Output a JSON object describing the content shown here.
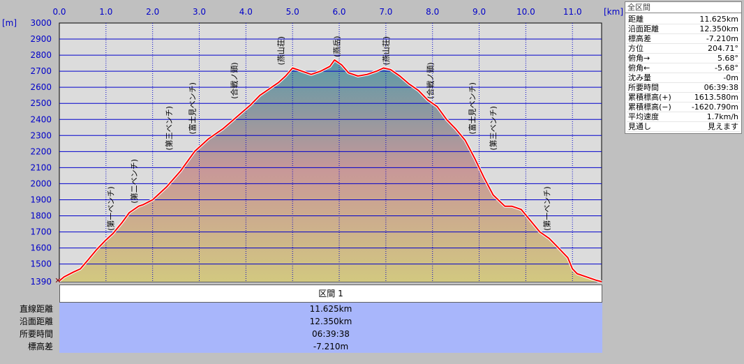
{
  "chart_data": {
    "type": "area",
    "x_unit_label": "[km]",
    "y_unit_label": "[m]",
    "xlim": [
      0,
      11.625
    ],
    "ylim": [
      1390,
      3000
    ],
    "x_ticks": [
      "0.0",
      "1.0",
      "2.0",
      "3.0",
      "4.0",
      "5.0",
      "6.0",
      "7.0",
      "8.0",
      "9.0",
      "10.0",
      "11.0"
    ],
    "y_ticks": [
      "1390",
      "1500",
      "1600",
      "1700",
      "1800",
      "1900",
      "2000",
      "2100",
      "2200",
      "2300",
      "2400",
      "2500",
      "2600",
      "2700",
      "2800",
      "2900",
      "3000"
    ],
    "grid": true,
    "profile": {
      "x": [
        0.0,
        0.1,
        0.3,
        0.45,
        0.6,
        0.8,
        1.0,
        1.15,
        1.35,
        1.5,
        1.7,
        1.8,
        2.0,
        2.3,
        2.6,
        2.9,
        3.2,
        3.5,
        3.7,
        3.9,
        4.1,
        4.3,
        4.5,
        4.7,
        4.85,
        5.0,
        5.2,
        5.4,
        5.6,
        5.8,
        5.9,
        6.05,
        6.2,
        6.4,
        6.6,
        6.8,
        6.95,
        7.1,
        7.3,
        7.5,
        7.7,
        7.9,
        8.1,
        8.3,
        8.5,
        8.7,
        8.9,
        9.1,
        9.3,
        9.55,
        9.7,
        9.9,
        10.1,
        10.3,
        10.5,
        10.7,
        10.9,
        11.0,
        11.1,
        11.3,
        11.5,
        11.625
      ],
      "y": [
        1395,
        1420,
        1450,
        1470,
        1520,
        1590,
        1650,
        1690,
        1760,
        1820,
        1860,
        1870,
        1900,
        1980,
        2080,
        2200,
        2280,
        2340,
        2390,
        2440,
        2490,
        2550,
        2590,
        2630,
        2670,
        2720,
        2700,
        2680,
        2700,
        2730,
        2770,
        2740,
        2690,
        2670,
        2680,
        2700,
        2720,
        2710,
        2670,
        2620,
        2580,
        2520,
        2480,
        2400,
        2340,
        2270,
        2160,
        2040,
        1930,
        1860,
        1860,
        1840,
        1770,
        1700,
        1660,
        1600,
        1540,
        1470,
        1440,
        1420,
        1400,
        1390
      ]
    },
    "waypoints": [
      {
        "x": 1.1,
        "y": 1690,
        "label": "(第一ベンチ)"
      },
      {
        "x": 1.6,
        "y": 1860,
        "label": "(第二ベンチ)"
      },
      {
        "x": 2.35,
        "y": 2190,
        "label": "(第三ベンチ)"
      },
      {
        "x": 2.85,
        "y": 2290,
        "label": "(富士見ベンチ)"
      },
      {
        "x": 3.75,
        "y": 2510,
        "label": "(合戦ノ頭)"
      },
      {
        "x": 4.75,
        "y": 2720,
        "label": "(燕山荘)"
      },
      {
        "x": 5.95,
        "y": 2770,
        "label": "(燕岳)"
      },
      {
        "x": 7.0,
        "y": 2720,
        "label": "(燕山荘)"
      },
      {
        "x": 7.95,
        "y": 2510,
        "label": "(合戦ノ頭)"
      },
      {
        "x": 8.85,
        "y": 2290,
        "label": "(富士見ベンチ)"
      },
      {
        "x": 9.3,
        "y": 2190,
        "label": "(第三ベンチ)"
      },
      {
        "x": 10.45,
        "y": 1690,
        "label": "(第一ベンチ)"
      }
    ],
    "colors": {
      "background": "#c0c0c0",
      "plot_area": "#dcdcdc",
      "grid": "#0000cc",
      "profile_line": "#ff0000",
      "fill_top": "#5a9aa8",
      "fill_mid": "#c89898",
      "fill_bottom": "#d2c880"
    }
  },
  "summary": {
    "title": "全区間",
    "rows": [
      {
        "label": "距離",
        "value": "11.625km"
      },
      {
        "label": "沿面距離",
        "value": "12.350km"
      },
      {
        "label": "標高差",
        "value": "-7.210m"
      },
      {
        "label": "方位",
        "value": "204.71°"
      },
      {
        "label": "俯角→",
        "value": "5.68°"
      },
      {
        "label": "俯角←",
        "value": "-5.68°"
      },
      {
        "label": "沈み量",
        "value": "-0m"
      },
      {
        "label": "所要時間",
        "value": "06:39:38"
      },
      {
        "label": "累積標高(+)",
        "value": "1613.580m"
      },
      {
        "label": "累積標高(−)",
        "value": "-1620.790m"
      },
      {
        "label": "平均速度",
        "value": "1.7km/h"
      },
      {
        "label": "見通し",
        "value": "見えます"
      }
    ]
  },
  "segment": {
    "header": "区間 1",
    "labels": [
      "直線距離",
      "沿面距離",
      "所要時間",
      "標高差"
    ],
    "values": [
      "11.625km",
      "12.350km",
      "06:39:38",
      "-7.210m"
    ],
    "color": "#a8b6fb"
  }
}
